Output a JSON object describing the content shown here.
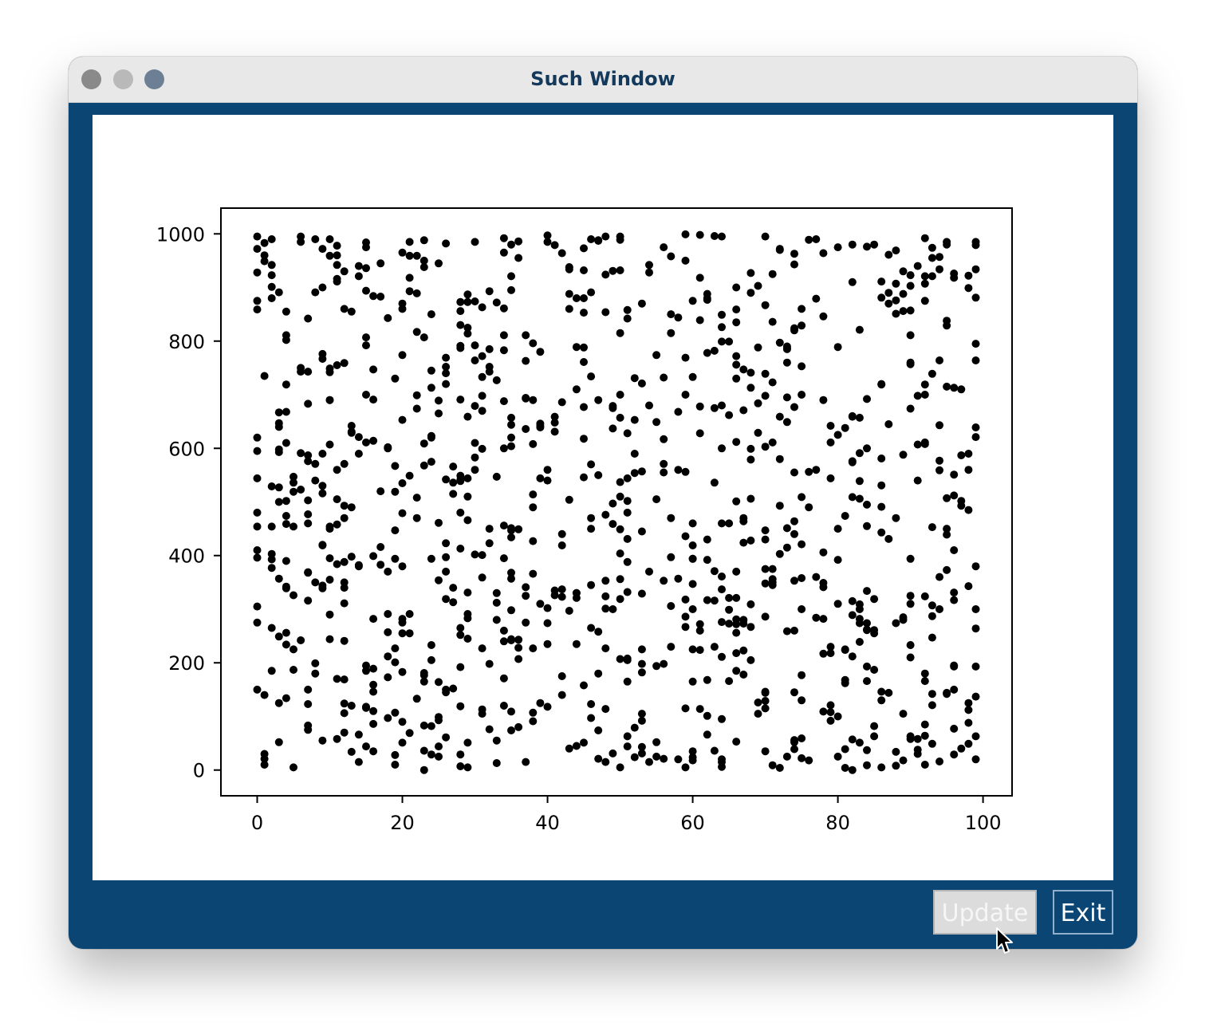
{
  "window": {
    "title": "Such Window"
  },
  "buttons": {
    "update_label": "Update",
    "exit_label": "Exit"
  },
  "colors": {
    "frame": "#0b4574",
    "marker": "#000000",
    "plot_background": "#ffffff"
  },
  "chart_data": {
    "type": "scatter",
    "title": "",
    "xlabel": "",
    "ylabel": "",
    "xlim": [
      -5,
      104
    ],
    "ylim": [
      -48,
      1048
    ],
    "xticks": [
      0,
      20,
      40,
      60,
      80,
      100
    ],
    "yticks": [
      0,
      200,
      400,
      600,
      800,
      1000
    ],
    "grid": false,
    "legend": "none",
    "point_count": 1000,
    "x_domain": [
      0,
      99
    ],
    "y_domain": [
      0,
      999
    ],
    "sample_points": [
      [
        0,
        995
      ],
      [
        1,
        960
      ],
      [
        2,
        990
      ],
      [
        6,
        995
      ],
      [
        6,
        985
      ],
      [
        10,
        990
      ],
      [
        11,
        960
      ],
      [
        15,
        975
      ],
      [
        20,
        965
      ],
      [
        25,
        945
      ],
      [
        30,
        985
      ],
      [
        36,
        955
      ],
      [
        40,
        985
      ],
      [
        46,
        990
      ],
      [
        48,
        995
      ],
      [
        50,
        995
      ],
      [
        56,
        975
      ],
      [
        59,
        950
      ],
      [
        70,
        995
      ],
      [
        77,
        990
      ],
      [
        80,
        975
      ],
      [
        85,
        980
      ],
      [
        93,
        955
      ],
      [
        95,
        985
      ],
      [
        99,
        985
      ],
      [
        0,
        875
      ],
      [
        2,
        880
      ],
      [
        4,
        855
      ],
      [
        9,
        900
      ],
      [
        14,
        940
      ],
      [
        20,
        870
      ],
      [
        28,
        830
      ],
      [
        35,
        895
      ],
      [
        45,
        880
      ],
      [
        53,
        870
      ],
      [
        57,
        850
      ],
      [
        62,
        880
      ],
      [
        68,
        890
      ],
      [
        75,
        860
      ],
      [
        82,
        910
      ],
      [
        87,
        870
      ],
      [
        92,
        875
      ],
      [
        99,
        795
      ],
      [
        1,
        735
      ],
      [
        3,
        640
      ],
      [
        6,
        750
      ],
      [
        10,
        690
      ],
      [
        15,
        700
      ],
      [
        19,
        730
      ],
      [
        26,
        720
      ],
      [
        31,
        670
      ],
      [
        38,
        690
      ],
      [
        44,
        710
      ],
      [
        50,
        700
      ],
      [
        54,
        680
      ],
      [
        59,
        700
      ],
      [
        66,
        730
      ],
      [
        73,
        760
      ],
      [
        78,
        690
      ],
      [
        86,
        720
      ],
      [
        90,
        760
      ],
      [
        97,
        710
      ],
      [
        0,
        595
      ],
      [
        4,
        610
      ],
      [
        8,
        540
      ],
      [
        14,
        590
      ],
      [
        18,
        600
      ],
      [
        24,
        620
      ],
      [
        30,
        560
      ],
      [
        34,
        600
      ],
      [
        40,
        560
      ],
      [
        47,
        550
      ],
      [
        52,
        590
      ],
      [
        58,
        560
      ],
      [
        64,
        600
      ],
      [
        72,
        580
      ],
      [
        77,
        560
      ],
      [
        84,
        600
      ],
      [
        91,
        540
      ],
      [
        98,
        560
      ],
      [
        0,
        480
      ],
      [
        3,
        500
      ],
      [
        7,
        460
      ],
      [
        12,
        470
      ],
      [
        17,
        520
      ],
      [
        22,
        470
      ],
      [
        28,
        480
      ],
      [
        32,
        450
      ],
      [
        38,
        490
      ],
      [
        42,
        440
      ],
      [
        46,
        470
      ],
      [
        51,
        480
      ],
      [
        57,
        470
      ],
      [
        62,
        430
      ],
      [
        67,
        470
      ],
      [
        74,
        440
      ],
      [
        80,
        450
      ],
      [
        88,
        470
      ],
      [
        95,
        450
      ],
      [
        99,
        380
      ],
      [
        0,
        410
      ],
      [
        4,
        390
      ],
      [
        9,
        420
      ],
      [
        14,
        380
      ],
      [
        20,
        380
      ],
      [
        27,
        340
      ],
      [
        33,
        330
      ],
      [
        39,
        310
      ],
      [
        44,
        330
      ],
      [
        49,
        300
      ],
      [
        54,
        370
      ],
      [
        60,
        300
      ],
      [
        66,
        370
      ],
      [
        71,
        350
      ],
      [
        77,
        360
      ],
      [
        83,
        300
      ],
      [
        89,
        280
      ],
      [
        94,
        300
      ],
      [
        99,
        300
      ],
      [
        0,
        305
      ],
      [
        2,
        265
      ],
      [
        5,
        225
      ],
      [
        10,
        290
      ],
      [
        15,
        195
      ],
      [
        20,
        255
      ],
      [
        24,
        205
      ],
      [
        29,
        245
      ],
      [
        34,
        260
      ],
      [
        40,
        235
      ],
      [
        46,
        265
      ],
      [
        51,
        205
      ],
      [
        57,
        230
      ],
      [
        63,
        230
      ],
      [
        68,
        205
      ],
      [
        74,
        260
      ],
      [
        79,
        230
      ],
      [
        85,
        255
      ],
      [
        90,
        210
      ],
      [
        96,
        195
      ],
      [
        0,
        150
      ],
      [
        3,
        125
      ],
      [
        7,
        75
      ],
      [
        12,
        70
      ],
      [
        16,
        110
      ],
      [
        20,
        90
      ],
      [
        26,
        145
      ],
      [
        31,
        105
      ],
      [
        36,
        80
      ],
      [
        42,
        140
      ],
      [
        47,
        180
      ],
      [
        53,
        105
      ],
      [
        59,
        115
      ],
      [
        64,
        95
      ],
      [
        69,
        105
      ],
      [
        75,
        130
      ],
      [
        80,
        100
      ],
      [
        86,
        130
      ],
      [
        92,
        85
      ],
      [
        98,
        125
      ],
      [
        1,
        30
      ],
      [
        1,
        10
      ],
      [
        5,
        5
      ],
      [
        9,
        55
      ],
      [
        14,
        15
      ],
      [
        19,
        10
      ],
      [
        23,
        0
      ],
      [
        29,
        5
      ],
      [
        33,
        55
      ],
      [
        37,
        15
      ],
      [
        44,
        45
      ],
      [
        50,
        5
      ],
      [
        54,
        15
      ],
      [
        58,
        20
      ],
      [
        64,
        20
      ],
      [
        70,
        35
      ],
      [
        73,
        25
      ],
      [
        80,
        25
      ],
      [
        82,
        0
      ],
      [
        86,
        5
      ],
      [
        91,
        30
      ],
      [
        97,
        40
      ]
    ]
  }
}
